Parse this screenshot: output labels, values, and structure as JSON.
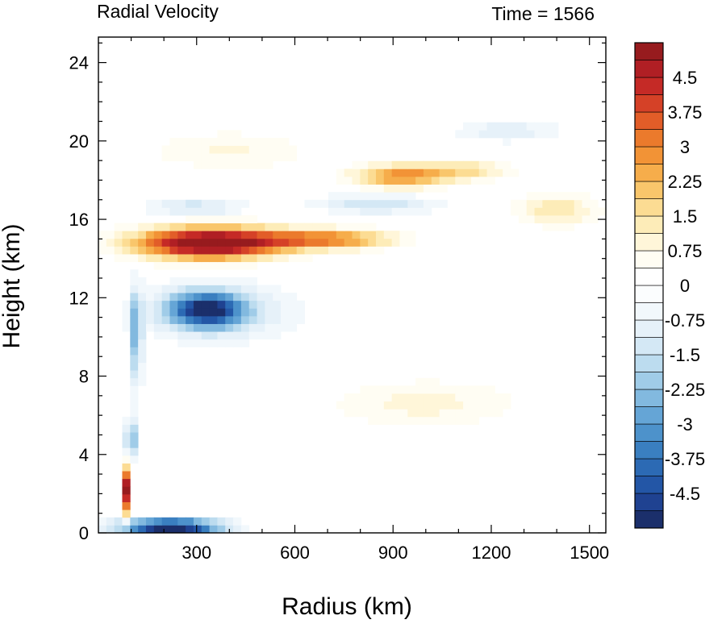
{
  "chart_data": {
    "type": "heatmap",
    "title_left": "Radial Velocity",
    "title_right": "Time = 1566",
    "xlabel": "Radius (km)",
    "ylabel": "Height (km)",
    "xlim": [
      0,
      1550
    ],
    "ylim": [
      0,
      25.3
    ],
    "x_ticks": [
      300,
      600,
      900,
      1200,
      1500
    ],
    "y_ticks": [
      0,
      4,
      8,
      12,
      16,
      20,
      24
    ],
    "colorbar": {
      "min": -5.25,
      "max": 5.25,
      "step": 0.375,
      "label_values": [
        -4.5,
        -3.75,
        -3,
        -2.25,
        -1.5,
        -0.75,
        0,
        0.75,
        1.5,
        2.25,
        3,
        3.75,
        4.5
      ],
      "labels": [
        "-4.5",
        "-3.75",
        "-3",
        "-2.25",
        "-1.5",
        "-0.75",
        "0",
        "0.75",
        "1.5",
        "2.25",
        "3",
        "3.75",
        "4.5"
      ],
      "colors": [
        "#1b2f6b",
        "#1f4291",
        "#2356a6",
        "#2c6ab4",
        "#3a7fc0",
        "#4d92cb",
        "#65a5d6",
        "#82b9df",
        "#a0cce8",
        "#bcdcef",
        "#d4e8f5",
        "#e6f1f9",
        "#f2f8fc",
        "#fbfdfe",
        "#ffffff",
        "#fffdf3",
        "#fff6d9",
        "#fdecb8",
        "#fcdc93",
        "#f9c66b",
        "#f6ad4b",
        "#f29336",
        "#eb7a2c",
        "#e25d28",
        "#d54127",
        "#c52a26",
        "#b01f24",
        "#971b1e"
      ]
    },
    "features": [
      {
        "name": "upper outflow",
        "r": 340,
        "z": 14.8,
        "v": 6,
        "sr": 220,
        "sz": 0.8
      },
      {
        "name": "upper outflow tail",
        "r": 700,
        "z": 15.0,
        "v": 3,
        "sr": 200,
        "sz": 0.5
      },
      {
        "name": "near-surface inflow",
        "r": 220,
        "z": 0.3,
        "v": -6,
        "sr": 150,
        "sz": 0.4
      },
      {
        "name": "mid-level inflow",
        "r": 330,
        "z": 11.4,
        "v": -4.2,
        "sr": 110,
        "sz": 0.9
      },
      {
        "name": "mid-level inflow halo",
        "r": 360,
        "z": 11.3,
        "v": -1.5,
        "sr": 230,
        "sz": 1.4
      },
      {
        "name": "eyewall inflow",
        "r": 115,
        "z": 10,
        "v": -2.5,
        "sr": 18,
        "sz": 2.5
      },
      {
        "name": "eyewall low",
        "r": 100,
        "z": 4.8,
        "v": -2.5,
        "sr": 20,
        "sz": 1.0
      },
      {
        "name": "eyewall outflow",
        "r": 85,
        "z": 2.2,
        "v": 5,
        "sr": 10,
        "sz": 1.2
      },
      {
        "name": "outflow band",
        "r": 920,
        "z": 18.2,
        "v": 2.8,
        "sr": 140,
        "sz": 0.6
      },
      {
        "name": "outflow band 2",
        "r": 1120,
        "z": 18.5,
        "v": 1.5,
        "sr": 140,
        "sz": 0.5
      },
      {
        "name": "inflow band",
        "r": 850,
        "z": 16.8,
        "v": -1.5,
        "sr": 180,
        "sz": 0.5
      },
      {
        "name": "upper inflow",
        "r": 1250,
        "z": 20.5,
        "v": -1.2,
        "sr": 150,
        "sz": 0.5
      },
      {
        "name": "anvil patch",
        "r": 1400,
        "z": 16.5,
        "v": 1.5,
        "sr": 120,
        "sz": 0.8
      },
      {
        "name": "mid-level outflow",
        "r": 1000,
        "z": 6.6,
        "v": 0.9,
        "sr": 280,
        "sz": 1.2
      },
      {
        "name": "upper-left outflow",
        "r": 400,
        "z": 19.5,
        "v": 0.8,
        "sr": 250,
        "sz": 1.0
      },
      {
        "name": "inflow above outflow",
        "r": 300,
        "z": 16.6,
        "v": -1.5,
        "sr": 150,
        "sz": 0.4
      }
    ]
  }
}
